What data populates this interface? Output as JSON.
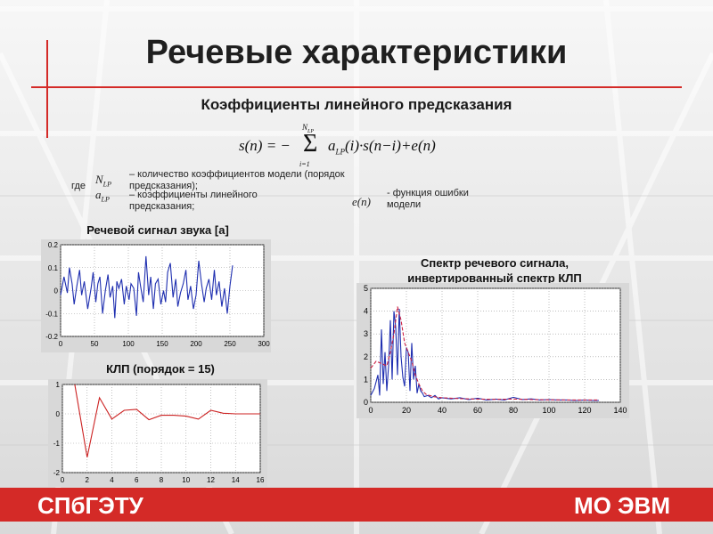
{
  "slide": {
    "title": "Речевые характеристики",
    "subtitle": "Коэффициенты линейного предсказания",
    "legend": {
      "where": "где",
      "n_lp_desc": "– количество коэффициентов модели (порядок предсказания);",
      "a_lp_desc": "– коэффициенты линейного предсказания;",
      "e_desc": "- функция ошибки модели"
    },
    "formula": {
      "lhs": "s(n) = −",
      "sum": "Σ",
      "upper": "N",
      "upper_sub": "LP",
      "lower": "i=1",
      "term": "a",
      "term_sub": "LP",
      "rest": "(i)·s(n−i)+e(n)",
      "sym_n": "N",
      "sym_n_sub": "LP",
      "sym_a": "a",
      "sym_a_sub": "LP",
      "sym_e": "e(n)"
    },
    "plot1_title": "Речевой сигнал звука [а]",
    "plot2_title": "КЛП (порядок = 15)",
    "plot3_title_line1": "Спектр речевого сигнала,",
    "plot3_title_line2": "инвертированный спектр КЛП",
    "footer_left": "СПбГЭТУ",
    "footer_right": "МО ЭВМ",
    "accent": "#d42a27"
  },
  "chart_data": [
    {
      "type": "line",
      "title": "Речевой сигнал звука [а]",
      "xlim": [
        0,
        300
      ],
      "ylim": [
        -0.2,
        0.2
      ],
      "xticks": [
        "0",
        "50",
        "100",
        "150",
        "200",
        "250",
        "300"
      ],
      "yticks": [
        "-0.2",
        "-0.1",
        "0",
        "0.1",
        "0.2"
      ],
      "series": [
        {
          "color": "#1f2fb0",
          "x": [
            0,
            5,
            10,
            13,
            17,
            20,
            24,
            28,
            31,
            35,
            40,
            45,
            48,
            52,
            55,
            58,
            62,
            66,
            70,
            73,
            77,
            80,
            83,
            86,
            90,
            94,
            97,
            101,
            104,
            108,
            112,
            115,
            118,
            122,
            126,
            130,
            133,
            137,
            140,
            144,
            148,
            152,
            155,
            158,
            162,
            166,
            170,
            173,
            177,
            181,
            185,
            188,
            192,
            196,
            200,
            204,
            208,
            212,
            215,
            219,
            223,
            227,
            230,
            234,
            238,
            242,
            246,
            250,
            254
          ],
          "y": [
            -0.02,
            0.06,
            -0.01,
            0.1,
            0.03,
            -0.06,
            0.02,
            0.09,
            -0.02,
            0.04,
            -0.08,
            0.01,
            0.08,
            -0.05,
            0.03,
            0.06,
            -0.1,
            0.0,
            0.07,
            -0.03,
            0.02,
            -0.12,
            0.04,
            0.01,
            0.05,
            -0.06,
            0.02,
            -0.04,
            0.03,
            0.01,
            -0.11,
            0.08,
            0.02,
            -0.05,
            0.15,
            -0.02,
            0.06,
            -0.08,
            0.03,
            0.05,
            -0.06,
            0.0,
            -0.05,
            0.08,
            0.12,
            -0.03,
            0.05,
            -0.07,
            -0.01,
            0.03,
            0.09,
            -0.04,
            0.02,
            -0.08,
            -0.02,
            0.13,
            0.03,
            -0.05,
            0.01,
            0.05,
            -0.04,
            0.09,
            -0.02,
            0.04,
            -0.07,
            0.01,
            -0.1,
            0.02,
            0.11
          ]
        }
      ]
    },
    {
      "type": "line",
      "title": "КЛП (порядок = 15)",
      "xlim": [
        0,
        16
      ],
      "ylim": [
        -2,
        1
      ],
      "xticks": [
        "0",
        "2",
        "4",
        "6",
        "8",
        "10",
        "12",
        "14",
        "16"
      ],
      "yticks": [
        "-2",
        "-1",
        "0",
        "1"
      ],
      "series": [
        {
          "color": "#cc2222",
          "x": [
            1,
            2,
            3,
            4,
            5,
            6,
            7,
            8,
            9,
            10,
            11,
            12,
            13,
            14,
            15,
            16
          ],
          "y": [
            1.0,
            -1.48,
            0.55,
            -0.18,
            0.12,
            0.15,
            -0.2,
            -0.05,
            -0.05,
            -0.08,
            -0.18,
            0.12,
            0.02,
            0.0,
            0.0,
            0.0
          ]
        }
      ]
    },
    {
      "type": "line",
      "title": "Спектр речевого сигнала, инвертированный спектр КЛП",
      "xlim": [
        0,
        140
      ],
      "ylim": [
        0,
        5
      ],
      "xticks": [
        "0",
        "20",
        "40",
        "60",
        "80",
        "100",
        "120",
        "140"
      ],
      "yticks": [
        "0",
        "1",
        "2",
        "3",
        "4",
        "5"
      ],
      "series": [
        {
          "color": "#1f2fb0",
          "x": [
            0,
            2,
            4,
            5,
            6,
            7,
            8,
            9,
            10,
            11,
            12,
            13,
            14,
            15,
            16,
            17,
            18,
            19,
            20,
            21,
            22,
            23,
            24,
            25,
            26,
            27,
            28,
            29,
            30,
            32,
            34,
            36,
            38,
            40,
            45,
            50,
            55,
            60,
            65,
            70,
            75,
            80,
            85,
            90,
            95,
            100,
            105,
            110,
            115,
            120,
            125,
            128
          ],
          "y": [
            0.3,
            0.6,
            1.2,
            0.3,
            3.2,
            0.8,
            2.2,
            0.5,
            1.6,
            3.6,
            1.0,
            4.0,
            3.3,
            1.2,
            4.1,
            2.0,
            1.1,
            0.7,
            2.4,
            2.2,
            0.5,
            2.6,
            1.0,
            1.6,
            0.4,
            0.8,
            0.5,
            0.4,
            0.25,
            0.3,
            0.2,
            0.3,
            0.15,
            0.2,
            0.15,
            0.2,
            0.12,
            0.18,
            0.1,
            0.14,
            0.1,
            0.22,
            0.12,
            0.15,
            0.1,
            0.12,
            0.1,
            0.1,
            0.08,
            0.1,
            0.08,
            0.08
          ]
        },
        {
          "color": "#cc2244",
          "dashed": true,
          "x": [
            0,
            3,
            6,
            9,
            11,
            13,
            15,
            17,
            19,
            21,
            23,
            25,
            27,
            29,
            31,
            35,
            40,
            45,
            50,
            60,
            70,
            80,
            90,
            100,
            110,
            120,
            128
          ],
          "y": [
            1.5,
            1.8,
            1.7,
            1.6,
            2.2,
            3.0,
            4.2,
            3.6,
            2.6,
            2.2,
            1.8,
            1.2,
            0.8,
            0.5,
            0.35,
            0.25,
            0.2,
            0.18,
            0.16,
            0.14,
            0.13,
            0.14,
            0.12,
            0.11,
            0.1,
            0.1,
            0.1
          ]
        }
      ]
    }
  ]
}
